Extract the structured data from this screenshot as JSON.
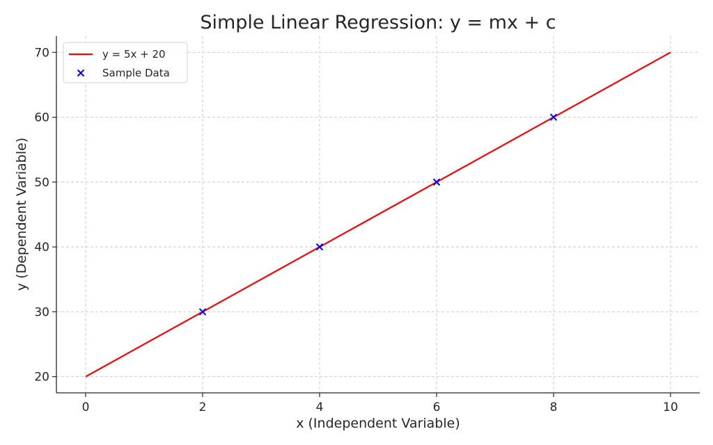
{
  "chart_data": {
    "type": "line",
    "title": "Simple Linear Regression: y = mx + c",
    "xlabel": "x (Independent Variable)",
    "ylabel": "y (Dependent Variable)",
    "xlim": [
      -0.5,
      10.5
    ],
    "ylim": [
      17.5,
      72.5
    ],
    "xticks": [
      0,
      2,
      4,
      6,
      8,
      10
    ],
    "yticks": [
      20,
      30,
      40,
      50,
      60,
      70
    ],
    "grid": true,
    "legend_position": "top-left",
    "series": [
      {
        "name": "y = 5x + 20",
        "kind": "line",
        "color": "#ff0000",
        "x": [
          0,
          10
        ],
        "y": [
          20,
          70
        ]
      },
      {
        "name": "Sample Data",
        "kind": "scatter",
        "marker": "x",
        "color": "#0000ff",
        "x": [
          2,
          4,
          6,
          8
        ],
        "y": [
          30,
          40,
          50,
          60
        ]
      }
    ]
  }
}
